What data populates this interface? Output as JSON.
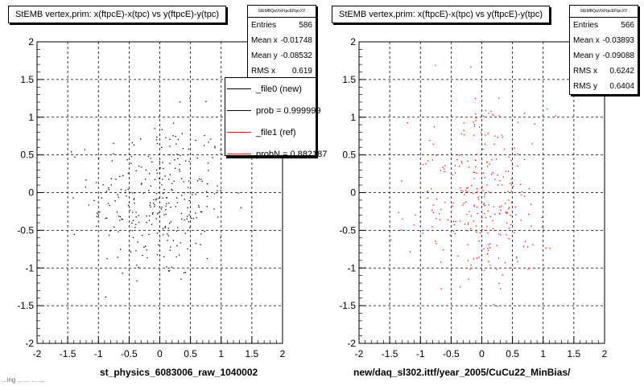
{
  "chart_data": [
    {
      "type": "scatter",
      "title": "StEMB  vertex,prim: x(ftpcE)-x(tpc) vs y(ftpcE)-y(tpc)",
      "xlim": [
        -2,
        2
      ],
      "ylim": [
        -2,
        2
      ],
      "x_ticks": [
        "-2",
        "-1.5",
        "-1",
        "-0.5",
        "0",
        "0.5",
        "1",
        "1.5",
        "2"
      ],
      "y_ticks": [
        "-2",
        "-1.5",
        "-1",
        "-0.5",
        "0",
        "0.5",
        "1",
        "1.5",
        "2"
      ],
      "grid": true,
      "xlabel": "st_physics_6083006_raw_1040002",
      "marker_color": "#000000",
      "stats": {
        "header": "StEMBQaVtxFtpcEFtpcXY",
        "entries_label": "Entries",
        "entries": "586",
        "meanx_label": "Mean x",
        "meanx": "-0.01748",
        "meany_label": "Mean y",
        "meany": "-0.08532",
        "rmsx_label": "RMS x",
        "rmsx": "0.619"
      },
      "legend": [
        {
          "label": "_file0 (new)",
          "color": "#000000"
        },
        {
          "label": "prob = 0.999999",
          "color": "#000000"
        },
        {
          "label": "_file1 (ref)",
          "color": "#ff0000"
        },
        {
          "label": "probN = 0.882187",
          "color": "#ff0000"
        }
      ]
    },
    {
      "type": "scatter",
      "title": "StEMB  vertex,prim: x(ftpcE)-x(tpc) vs y(ftpcE)-y(tpc)",
      "xlim": [
        -2,
        2
      ],
      "ylim": [
        -2,
        2
      ],
      "x_ticks": [
        "-2",
        "-1.5",
        "-1",
        "-0.5",
        "0",
        "0.5",
        "1",
        "1.5",
        "2"
      ],
      "y_ticks": [
        "-2",
        "-1.5",
        "-1",
        "-0.5",
        "0",
        "0.5",
        "1",
        "1.5",
        "2"
      ],
      "grid": true,
      "xlabel": "new/daq_sl302.ittf/year_2005/CuCu22_MinBias/",
      "marker_color": "#ff0000",
      "stats": {
        "header": "StEMBQaVtxFtpcEFtpcXY",
        "entries_label": "Entries",
        "entries": "566",
        "meanx_label": "Mean x",
        "meanx": "-0.03893",
        "meany_label": "Mean y",
        "meany": "-0.09088",
        "rmsx_label": "RMS x",
        "rmsx": "0.6242",
        "rmsy_label": "RMS y",
        "rmsy": "0.6404"
      }
    }
  ],
  "footer": "...ing ... ... ... ..."
}
